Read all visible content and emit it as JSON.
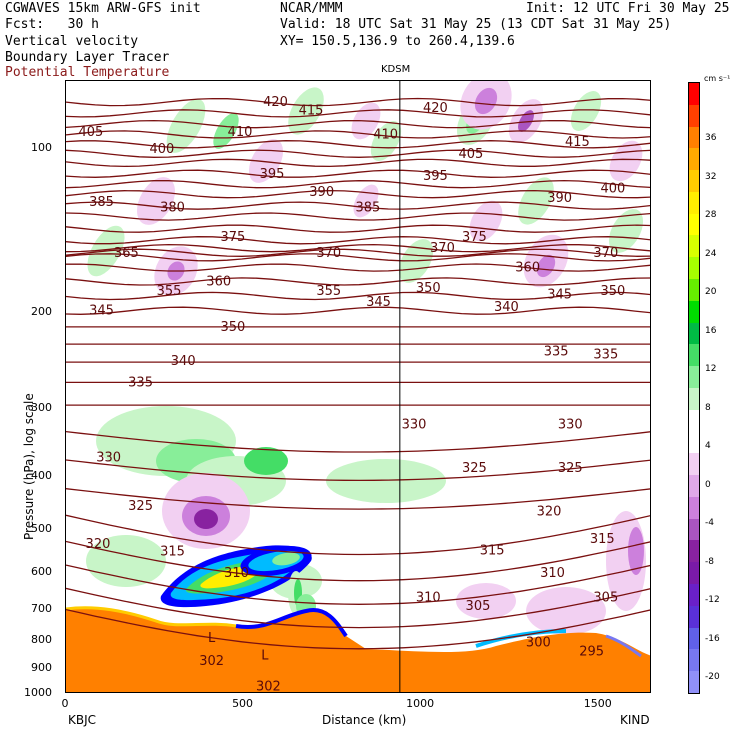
{
  "header": {
    "left1": "CGWAVES 15km ARW-GFS init",
    "center1": "NCAR/MMM",
    "right1": "Init: 12 UTC Fri 30 May 25",
    "left2": "Fcst:   30 h",
    "right2": "Valid: 18 UTC Sat 31 May 25 (13 CDT Sat 31 May 25)",
    "left3": "Vertical velocity",
    "right3": "XY= 150.5,136.9 to 260.4,139.6",
    "left4": "Boundary Layer Tracer",
    "left5": "Potential Temperature"
  },
  "chart_data": {
    "type": "heatmap",
    "title": "",
    "xlabel": "Distance (km)",
    "ylabel": "Pressure (hPa), log scale",
    "xlim": [
      0,
      1650
    ],
    "ylim": [
      1000,
      75
    ],
    "y_scale": "log",
    "x_ticks": [
      0,
      500,
      1000,
      1500
    ],
    "y_ticks": [
      100,
      200,
      300,
      400,
      500,
      600,
      700,
      800,
      900,
      1000
    ],
    "station_left": "KBJC",
    "station_right": "KIND",
    "station_marker": {
      "label": "KDSM",
      "x": 940
    },
    "colorbar": {
      "unit": "cm s⁻¹",
      "labels": [
        "36",
        "32",
        "28",
        "24",
        "20",
        "16",
        "12",
        "8",
        "4",
        "0",
        "-4",
        "-8",
        "-12",
        "-16",
        "-20"
      ],
      "colors": [
        "#ff0000",
        "#ff4000",
        "#ff8000",
        "#ffaa00",
        "#ffcc00",
        "#ffee00",
        "#ffff00",
        "#d7ff00",
        "#a6ff00",
        "#66ee00",
        "#00dd00",
        "#00bb44",
        "#44dd66",
        "#88ee99",
        "#c8f5c8",
        "#ffffff",
        "#ffffff",
        "#f2d0f2",
        "#e0a8e8",
        "#cc80dc",
        "#aa55c0",
        "#8822a0",
        "#7a1aa8",
        "#6a20c8",
        "#5a30d8",
        "#6060e8",
        "#7878f0",
        "#9090f8"
      ]
    },
    "theta_labels": [
      {
        "text": "420",
        "x": 590,
        "p": 82
      },
      {
        "text": "415",
        "x": 690,
        "p": 85
      },
      {
        "text": "420",
        "x": 1040,
        "p": 84
      },
      {
        "text": "415",
        "x": 1440,
        "p": 97
      },
      {
        "text": "410",
        "x": 490,
        "p": 93
      },
      {
        "text": "410",
        "x": 900,
        "p": 94
      },
      {
        "text": "405",
        "x": 70,
        "p": 93
      },
      {
        "text": "400",
        "x": 270,
        "p": 100
      },
      {
        "text": "405",
        "x": 1140,
        "p": 102
      },
      {
        "text": "395",
        "x": 580,
        "p": 111
      },
      {
        "text": "395",
        "x": 1040,
        "p": 112
      },
      {
        "text": "400",
        "x": 1540,
        "p": 118
      },
      {
        "text": "385",
        "x": 100,
        "p": 125
      },
      {
        "text": "390",
        "x": 720,
        "p": 120
      },
      {
        "text": "385",
        "x": 850,
        "p": 128
      },
      {
        "text": "390",
        "x": 1390,
        "p": 123
      },
      {
        "text": "380",
        "x": 300,
        "p": 128
      },
      {
        "text": "375",
        "x": 470,
        "p": 145
      },
      {
        "text": "375",
        "x": 1150,
        "p": 145
      },
      {
        "text": "370",
        "x": 1060,
        "p": 152
      },
      {
        "text": "370",
        "x": 740,
        "p": 155
      },
      {
        "text": "370",
        "x": 1520,
        "p": 155
      },
      {
        "text": "365",
        "x": 170,
        "p": 155
      },
      {
        "text": "360",
        "x": 430,
        "p": 175
      },
      {
        "text": "360",
        "x": 1300,
        "p": 165
      },
      {
        "text": "355",
        "x": 290,
        "p": 182
      },
      {
        "text": "355",
        "x": 740,
        "p": 182
      },
      {
        "text": "350",
        "x": 1020,
        "p": 180
      },
      {
        "text": "350",
        "x": 1540,
        "p": 182
      },
      {
        "text": "345",
        "x": 100,
        "p": 198
      },
      {
        "text": "345",
        "x": 880,
        "p": 191
      },
      {
        "text": "345",
        "x": 1390,
        "p": 185
      },
      {
        "text": "340",
        "x": 1240,
        "p": 195
      },
      {
        "text": "350",
        "x": 470,
        "p": 212
      },
      {
        "text": "340",
        "x": 330,
        "p": 245
      },
      {
        "text": "335",
        "x": 1380,
        "p": 235
      },
      {
        "text": "335",
        "x": 1520,
        "p": 238
      },
      {
        "text": "335",
        "x": 210,
        "p": 268
      },
      {
        "text": "330",
        "x": 980,
        "p": 320
      },
      {
        "text": "330",
        "x": 1420,
        "p": 320
      },
      {
        "text": "330",
        "x": 120,
        "p": 368
      },
      {
        "text": "325",
        "x": 1150,
        "p": 385
      },
      {
        "text": "325",
        "x": 1420,
        "p": 385
      },
      {
        "text": "325",
        "x": 210,
        "p": 452
      },
      {
        "text": "320",
        "x": 1360,
        "p": 462
      },
      {
        "text": "320",
        "x": 90,
        "p": 530
      },
      {
        "text": "315",
        "x": 1200,
        "p": 545
      },
      {
        "text": "315",
        "x": 1510,
        "p": 520
      },
      {
        "text": "315",
        "x": 300,
        "p": 548
      },
      {
        "text": "310",
        "x": 480,
        "p": 600
      },
      {
        "text": "310",
        "x": 1370,
        "p": 600
      },
      {
        "text": "310",
        "x": 1020,
        "p": 665
      },
      {
        "text": "305",
        "x": 1160,
        "p": 690
      },
      {
        "text": "305",
        "x": 1520,
        "p": 665
      },
      {
        "text": "300",
        "x": 1330,
        "p": 805
      },
      {
        "text": "295",
        "x": 1480,
        "p": 835
      },
      {
        "text": "302",
        "x": 410,
        "p": 870
      },
      {
        "text": "302",
        "x": 570,
        "p": 968
      }
    ],
    "low_markers": [
      {
        "text": "L",
        "x": 410,
        "p": 790
      },
      {
        "text": "L",
        "x": 560,
        "p": 850
      }
    ]
  }
}
